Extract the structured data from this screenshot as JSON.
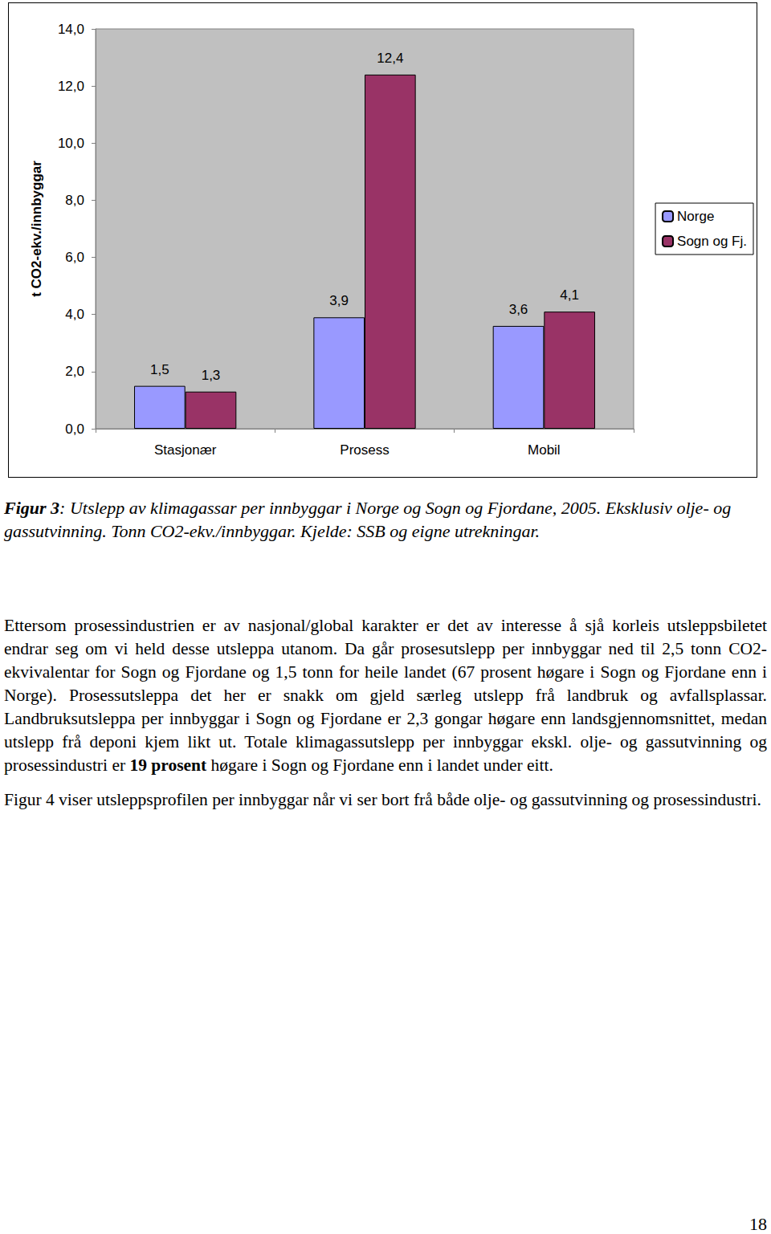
{
  "chart_data": {
    "type": "bar",
    "y_label": "t CO2-ekv./innbyggar",
    "categories": [
      "Stasjonær",
      "Prosess",
      "Mobil"
    ],
    "series": [
      {
        "name": "Norge",
        "color": "#9999ff",
        "values": [
          1.5,
          3.9,
          3.6
        ],
        "value_labels": [
          "1,5",
          "3,9",
          "3,6"
        ]
      },
      {
        "name": "Sogn og Fj.",
        "color": "#993366",
        "values": [
          1.3,
          12.4,
          4.1
        ],
        "value_labels": [
          "1,3",
          "12,4",
          "4,1"
        ]
      }
    ],
    "ylim": [
      0,
      14
    ],
    "yticks": [
      {
        "value": 0,
        "label": "0,0"
      },
      {
        "value": 2,
        "label": "2,0"
      },
      {
        "value": 4,
        "label": "4,0"
      },
      {
        "value": 6,
        "label": "6,0"
      },
      {
        "value": 8,
        "label": "8,0"
      },
      {
        "value": 10,
        "label": "10,0"
      },
      {
        "value": 12,
        "label": "12,0"
      },
      {
        "value": 14,
        "label": "14,0"
      }
    ],
    "grid": false,
    "legend": "right",
    "data_labels": true
  },
  "caption": {
    "label": "Figur 3",
    "text": ": Utslepp av klimagassar per innbyggar i Norge og Sogn og Fjordane, 2005. Eksklusiv olje- og gassutvinning. Tonn CO2-ekv./innbyggar. Kjelde: SSB og eigne utrekningar."
  },
  "paragraphs": [
    {
      "text": "Ettersom prosessindustrien er av nasjonal/global karakter er det av interesse å sjå korleis utsleppsbiletet endrar seg om vi held desse utsleppa utanom. Da går prosesutslepp per innbyggar ned til 2,5 tonn CO2-ekvivalentar for Sogn og Fjordane og 1,5 tonn for heile landet (67 prosent høgare i Sogn og Fjordane enn i Norge). Prosessutsleppa det her er snakk om gjeld særleg utslepp frå landbruk og avfallsplassar. Landbruksutsleppa per innbyggar i Sogn og Fjordane er 2,3 gongar høgare enn landsgjennomsnittet, medan utslepp frå deponi kjem likt ut. Totale klimagassutslepp per innbyggar ekskl. olje- og gassutvinning og prosessindustri er ",
      "bold": "19 prosent",
      "after": " høgare i Sogn og Fjordane enn i landet under eitt."
    },
    {
      "text": "Figur 4 viser utsleppsprofilen per innbyggar når vi ser bort frå både olje- og gassutvinning og prosessindustri."
    }
  ],
  "page_number": "18"
}
